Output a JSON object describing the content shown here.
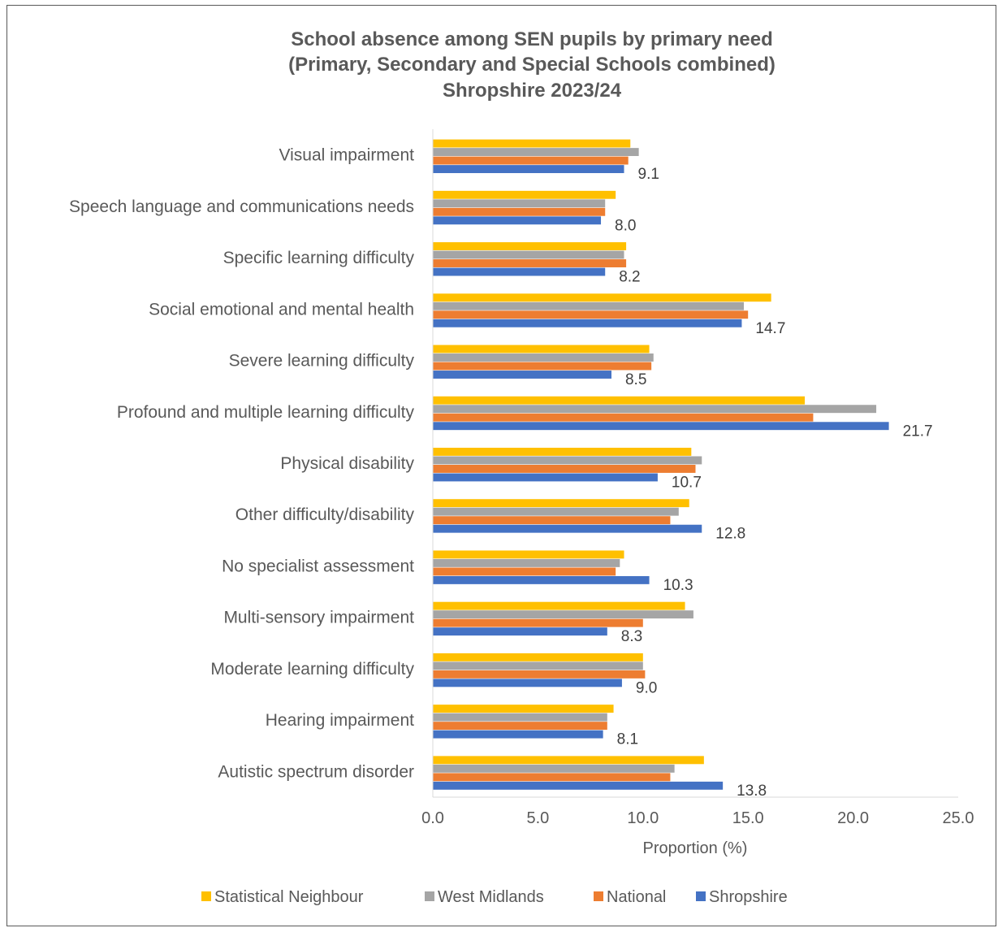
{
  "chart_data": {
    "type": "bar",
    "orientation": "horizontal",
    "title_lines": [
      "School absence among SEN pupils by primary need",
      "(Primary, Secondary and Special Schools combined)",
      "Shropshire 2023/24"
    ],
    "xlabel": "Proportion (%)",
    "ylabel": "",
    "xlim": [
      0,
      25
    ],
    "x_ticks": [
      "0.0",
      "5.0",
      "10.0",
      "15.0",
      "20.0",
      "25.0"
    ],
    "grid": false,
    "legend_position": "bottom",
    "categories": [
      "Visual impairment",
      "Speech language and communications needs",
      "Specific learning difficulty",
      "Social emotional and mental health",
      "Severe learning difficulty",
      "Profound and multiple learning difficulty",
      "Physical disability",
      "Other difficulty/disability",
      "No specialist assessment",
      "Multi-sensory impairment",
      "Moderate learning difficulty",
      "Hearing impairment",
      "Autistic spectrum disorder"
    ],
    "series": [
      {
        "name": "Statistical Neighbour",
        "color": "#FFC000",
        "values": [
          9.4,
          8.7,
          9.2,
          16.1,
          10.3,
          17.7,
          12.3,
          12.2,
          9.1,
          12.0,
          10.0,
          8.6,
          12.9
        ]
      },
      {
        "name": "West Midlands",
        "color": "#A5A5A5",
        "values": [
          9.8,
          8.2,
          9.1,
          14.8,
          10.5,
          21.1,
          12.8,
          11.7,
          8.9,
          12.4,
          10.0,
          8.3,
          11.5
        ]
      },
      {
        "name": "National",
        "color": "#ED7D31",
        "values": [
          9.3,
          8.2,
          9.2,
          15.0,
          10.4,
          18.1,
          12.5,
          11.3,
          8.7,
          10.0,
          10.1,
          8.3,
          11.3
        ]
      },
      {
        "name": "Shropshire",
        "color": "#4472C4",
        "values": [
          9.1,
          8.0,
          8.2,
          14.7,
          8.5,
          21.7,
          10.7,
          12.8,
          10.3,
          8.3,
          9.0,
          8.1,
          13.8
        ]
      }
    ],
    "data_labels": [
      "9.1",
      "8.0",
      "8.2",
      "14.7",
      "8.5",
      "21.7",
      "10.7",
      "12.8",
      "10.3",
      "8.3",
      "9.0",
      "8.1",
      "13.8"
    ],
    "legend_order": [
      "Statistical Neighbour",
      "West Midlands",
      "National",
      "Shropshire"
    ]
  }
}
